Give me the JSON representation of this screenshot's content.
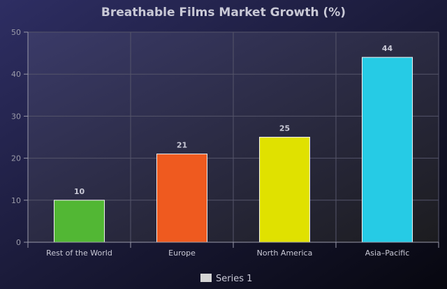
{
  "chart_data": {
    "type": "bar",
    "title": "Breathable Films Market Growth (%)",
    "categories": [
      "Rest of the World",
      "Europe",
      "North America",
      "Asia–Pacific"
    ],
    "series": [
      {
        "name": "Series 1",
        "values": [
          10,
          21,
          25,
          44
        ],
        "colors": [
          "#52b734",
          "#ef5a1f",
          "#e0e100",
          "#26cbe5"
        ]
      }
    ],
    "ylim": [
      0,
      50
    ],
    "yticks": [
      0,
      10,
      20,
      30,
      40,
      50
    ],
    "grid": true,
    "legend": "bottom-center",
    "data_labels": true,
    "colors": {
      "background_top": "#2e2e63",
      "background_bottom": "#07070f",
      "plot_top": "#3a3a68",
      "plot_bottom": "#1c1c1f",
      "text": "#c9c9d6",
      "tick_text": "#9a9aa8",
      "grid": "#55556a",
      "axis": "#9a9aaa",
      "legend_swatch": "#d4d4d4"
    }
  }
}
